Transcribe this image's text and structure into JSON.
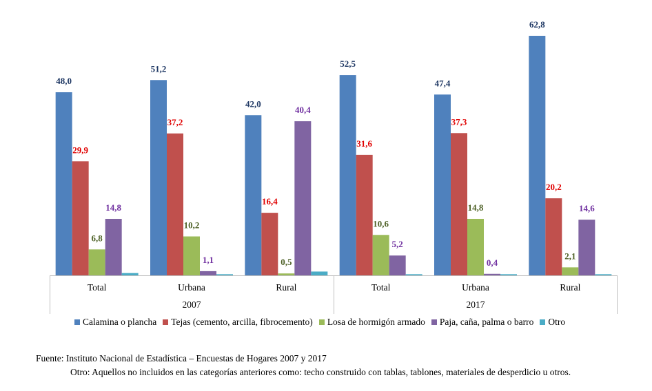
{
  "chart_data": {
    "type": "bar",
    "groups": [
      {
        "label": "2007",
        "categories": [
          "Total",
          "Urbana",
          "Rural"
        ]
      },
      {
        "label": "2017",
        "categories": [
          "Total",
          "Urbana",
          "Rural"
        ]
      }
    ],
    "series": [
      {
        "name": "Calamina o plancha",
        "color": "#4F81BD",
        "label_color": "#1F3864",
        "values": [
          48.0,
          51.2,
          42.0,
          52.5,
          47.4,
          62.8
        ],
        "labels": [
          "48,0",
          "51,2",
          "42,0",
          "52,5",
          "47,4",
          "62,8"
        ]
      },
      {
        "name": "Tejas (cemento, arcilla, fibrocemento)",
        "color": "#C0504D",
        "label_color": "#E00000",
        "values": [
          29.9,
          37.2,
          16.4,
          31.6,
          37.3,
          20.2
        ],
        "labels": [
          "29,9",
          "37,2",
          "16,4",
          "31,6",
          "37,3",
          "20,2"
        ]
      },
      {
        "name": "Losa de hormigón armado",
        "color": "#9BBB59",
        "label_color": "#4F6228",
        "values": [
          6.8,
          10.2,
          0.5,
          10.6,
          14.8,
          2.1
        ],
        "labels": [
          "6,8",
          "10,2",
          "0,5",
          "10,6",
          "14,8",
          "2,1"
        ]
      },
      {
        "name": "Paja, caña, palma o barro",
        "color": "#8064A2",
        "label_color": "#7030A0",
        "values": [
          14.8,
          1.1,
          40.4,
          5.2,
          0.4,
          14.6
        ],
        "labels": [
          "14,8",
          "1,1",
          "40,4",
          "5,2",
          "0,4",
          "14,6"
        ]
      },
      {
        "name": "Otro",
        "color": "#4BACC6",
        "label_color": "#31859C",
        "values": [
          0.6,
          0.3,
          1.0,
          0.3,
          0.3,
          0.3
        ],
        "labels": [
          "",
          "",
          "",
          "",
          "",
          ""
        ]
      }
    ],
    "ylim": [
      0,
      65
    ]
  },
  "footer": {
    "source": "Fuente: Instituto Nacional de Estadística – Encuestas de Hogares 2007 y 2017",
    "note": "Otro: Aquellos no incluidos en las categorías anteriores como: techo construido con tablas, tablones, materiales de desperdicio u otros."
  }
}
